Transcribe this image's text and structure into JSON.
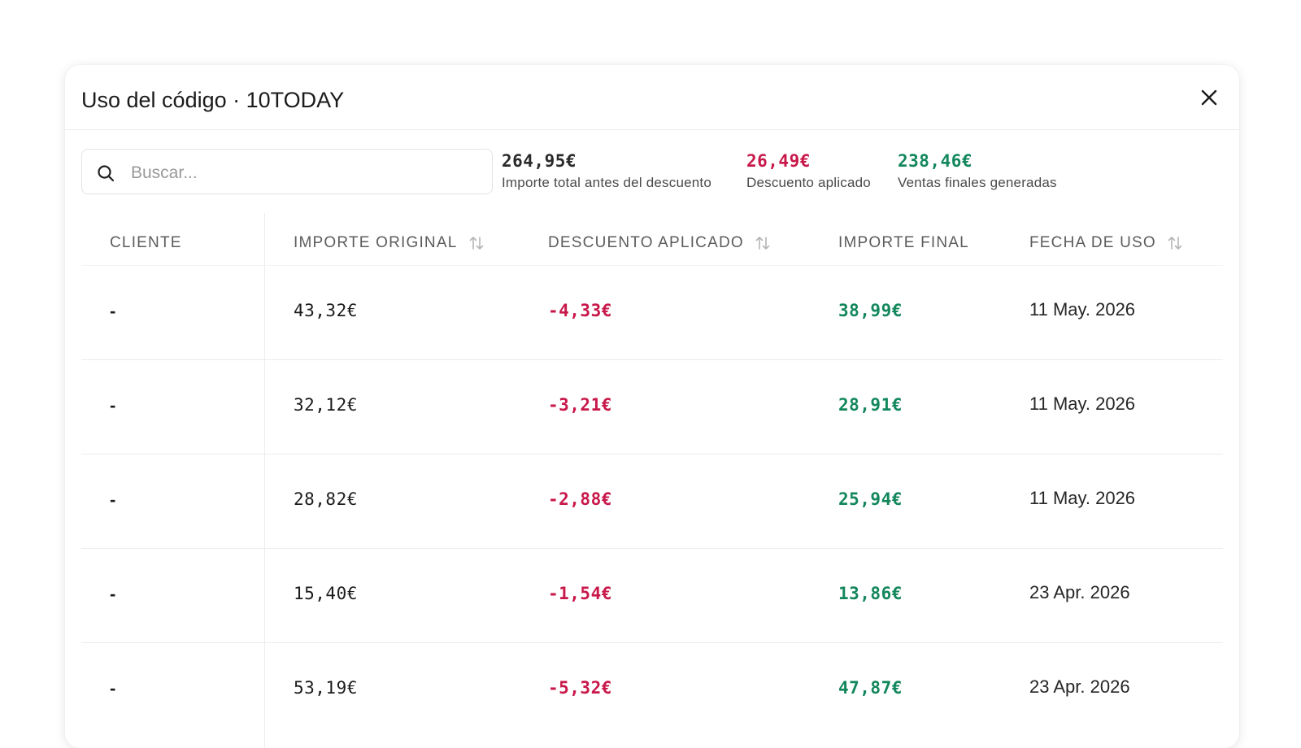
{
  "modal": {
    "title": "Uso del código · 10TODAY"
  },
  "search": {
    "placeholder": "Buscar..."
  },
  "stats": [
    {
      "value": "264,95€",
      "label": "Importe total antes del descuento"
    },
    {
      "value": "26,49€",
      "label": "Descuento aplicado"
    },
    {
      "value": "238,46€",
      "label": "Ventas finales generadas"
    }
  ],
  "colors": {
    "discount": "#c8184a",
    "final": "#13875c",
    "neutral": "#2a2a2a"
  },
  "icons": {
    "close": "close-icon",
    "search": "search-icon",
    "sort": "sort-arrows-icon"
  },
  "table": {
    "columns": [
      "CLIENTE",
      "IMPORTE ORIGINAL",
      "DESCUENTO APLICADO",
      "IMPORTE FINAL",
      "FECHA DE USO"
    ],
    "rows": [
      {
        "client": "-",
        "original": "43,32€",
        "discount": "-4,33€",
        "final": "38,99€",
        "date": "11 May. 2026"
      },
      {
        "client": "-",
        "original": "32,12€",
        "discount": "-3,21€",
        "final": "28,91€",
        "date": "11 May. 2026"
      },
      {
        "client": "-",
        "original": "28,82€",
        "discount": "-2,88€",
        "final": "25,94€",
        "date": "11 May. 2026"
      },
      {
        "client": "-",
        "original": "15,40€",
        "discount": "-1,54€",
        "final": "13,86€",
        "date": "23 Apr. 2026"
      },
      {
        "client": "-",
        "original": "53,19€",
        "discount": "-5,32€",
        "final": "47,87€",
        "date": "23 Apr. 2026"
      }
    ]
  }
}
